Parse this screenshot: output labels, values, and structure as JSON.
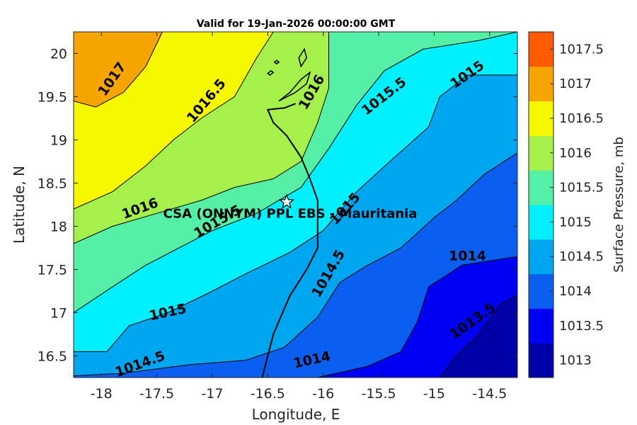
{
  "chart_data": {
    "type": "contour",
    "title": "Valid for 19-Jan-2026 00:00:00 GMT",
    "xlabel": "Longitude, E",
    "ylabel": "Latitude, N",
    "xlim": [
      -18.25,
      -14.25
    ],
    "ylim": [
      16.25,
      20.25
    ],
    "xticks": [
      -18,
      -17.5,
      -17,
      -16.5,
      -16,
      -15.5,
      -15,
      -14.5
    ],
    "xtick_labels": [
      "-18",
      "-17.5",
      "-17",
      "-16.5",
      "-16",
      "-15.5",
      "-15",
      "-14.5"
    ],
    "yticks": [
      16.5,
      17,
      17.5,
      18,
      18.5,
      19,
      19.5,
      20
    ],
    "ytick_labels": [
      "16.5",
      "17",
      "17.5",
      "18",
      "18.5",
      "19",
      "19.5",
      "20"
    ],
    "colorbar": {
      "label": "Surface Pressure, mb",
      "levels": [
        1013,
        1013.5,
        1014,
        1014.5,
        1015,
        1015.5,
        1016,
        1016.5,
        1017,
        1017.5
      ],
      "level_labels": [
        "1013",
        "1013.5",
        "1014",
        "1014.5",
        "1015",
        "1015.5",
        "1016",
        "1016.5",
        "1017",
        "1017.5"
      ],
      "colors": [
        "#0000a8",
        "#0000f5",
        "#0a5ff0",
        "#00a5f0",
        "#00f0ff",
        "#55f0a5",
        "#a5f04a",
        "#f7f700",
        "#f7a500",
        "#ff5a00"
      ]
    },
    "contours": [
      {
        "level": 1017,
        "label": "1017",
        "points": [
          [
            -18.25,
            19.45
          ],
          [
            -18.05,
            19.38
          ],
          [
            -17.8,
            19.55
          ],
          [
            -17.6,
            19.85
          ],
          [
            -17.45,
            20.25
          ]
        ]
      },
      {
        "level": 1016.5,
        "label": "1016.5",
        "points": [
          [
            -18.25,
            18.2
          ],
          [
            -17.9,
            18.4
          ],
          [
            -17.6,
            18.7
          ],
          [
            -17.35,
            19.0
          ],
          [
            -17.1,
            19.25
          ],
          [
            -16.8,
            19.5
          ],
          [
            -16.6,
            19.95
          ],
          [
            -16.45,
            20.25
          ]
        ]
      },
      {
        "level": 1016,
        "label": "1016",
        "points": [
          [
            -18.25,
            17.8
          ],
          [
            -17.9,
            18.0
          ],
          [
            -17.5,
            18.15
          ],
          [
            -17.1,
            18.3
          ],
          [
            -16.8,
            18.45
          ],
          [
            -16.45,
            18.55
          ],
          [
            -16.2,
            18.75
          ],
          [
            -16.05,
            19.2
          ],
          [
            -15.95,
            19.6
          ],
          [
            -15.95,
            20.25
          ]
        ]
      },
      {
        "level": 1015.5,
        "label": "1015.5",
        "points": [
          [
            -18.25,
            17.0
          ],
          [
            -17.9,
            17.3
          ],
          [
            -17.6,
            17.55
          ],
          [
            -17.3,
            17.75
          ],
          [
            -17.0,
            17.95
          ],
          [
            -16.6,
            18.15
          ],
          [
            -16.2,
            18.45
          ],
          [
            -15.95,
            18.9
          ],
          [
            -15.7,
            19.4
          ],
          [
            -15.45,
            19.8
          ],
          [
            -15.1,
            20.05
          ],
          [
            -14.6,
            20.15
          ],
          [
            -14.25,
            20.25
          ]
        ]
      },
      {
        "level": 1015,
        "label": "1015",
        "points": [
          [
            -18.25,
            16.55
          ],
          [
            -17.95,
            16.55
          ],
          [
            -17.75,
            16.85
          ],
          [
            -17.4,
            17.0
          ],
          [
            -17.0,
            17.25
          ],
          [
            -16.7,
            17.45
          ],
          [
            -16.3,
            17.7
          ],
          [
            -16.0,
            17.95
          ],
          [
            -15.7,
            18.4
          ],
          [
            -15.4,
            18.75
          ],
          [
            -15.05,
            19.15
          ],
          [
            -14.95,
            19.5
          ],
          [
            -14.7,
            19.75
          ],
          [
            -14.25,
            19.75
          ]
        ]
      },
      {
        "level": 1014.5,
        "label": "1014.5",
        "points": [
          [
            -18.25,
            16.27
          ],
          [
            -17.8,
            16.3
          ],
          [
            -17.2,
            16.4
          ],
          [
            -16.7,
            16.45
          ],
          [
            -16.35,
            16.6
          ],
          [
            -16.05,
            16.95
          ],
          [
            -15.85,
            17.35
          ],
          [
            -15.6,
            17.55
          ],
          [
            -15.3,
            17.75
          ],
          [
            -15.0,
            18.1
          ],
          [
            -14.8,
            18.3
          ],
          [
            -14.55,
            18.6
          ],
          [
            -14.25,
            18.85
          ]
        ]
      },
      {
        "level": 1014,
        "label": "1014",
        "points": [
          [
            -16.05,
            16.25
          ],
          [
            -15.6,
            16.38
          ],
          [
            -15.3,
            16.55
          ],
          [
            -15.15,
            16.9
          ],
          [
            -15.05,
            17.3
          ],
          [
            -14.75,
            17.55
          ],
          [
            -14.5,
            17.6
          ],
          [
            -14.25,
            17.65
          ]
        ]
      },
      {
        "level": 1013.5,
        "label": "1013.5",
        "points": [
          [
            -14.95,
            16.25
          ],
          [
            -14.8,
            16.5
          ],
          [
            -14.6,
            16.75
          ],
          [
            -14.4,
            17.1
          ],
          [
            -14.25,
            17.2
          ]
        ]
      }
    ],
    "contour_labels": [
      {
        "text": "1017",
        "lon": -17.9,
        "lat": 19.7,
        "angle": -55
      },
      {
        "text": "1016.5",
        "lon": -17.05,
        "lat": 19.45,
        "angle": -50
      },
      {
        "text": "1016",
        "lon": -16.1,
        "lat": 19.55,
        "angle": -60
      },
      {
        "text": "1015.5",
        "lon": -15.45,
        "lat": 19.5,
        "angle": -38
      },
      {
        "text": "1015",
        "lon": -14.7,
        "lat": 19.75,
        "angle": -35
      },
      {
        "text": "1016",
        "lon": -17.65,
        "lat": 18.2,
        "angle": -20
      },
      {
        "text": "1015.5",
        "lon": -16.95,
        "lat": 18.05,
        "angle": -30
      },
      {
        "text": "1015",
        "lon": -15.8,
        "lat": 18.2,
        "angle": -48
      },
      {
        "text": "1015",
        "lon": -17.4,
        "lat": 17.0,
        "angle": -12
      },
      {
        "text": "1014.5",
        "lon": -15.95,
        "lat": 17.45,
        "angle": -60
      },
      {
        "text": "1014.5",
        "lon": -17.65,
        "lat": 16.4,
        "angle": -20
      },
      {
        "text": "1014",
        "lon": -16.1,
        "lat": 16.45,
        "angle": -12
      },
      {
        "text": "1014",
        "lon": -14.7,
        "lat": 17.65,
        "angle": 0
      },
      {
        "text": "1013.5",
        "lon": -14.65,
        "lat": 16.9,
        "angle": -35
      }
    ],
    "coastline": [
      [
        -16.55,
        16.25
      ],
      [
        -16.5,
        16.5
      ],
      [
        -16.45,
        16.75
      ],
      [
        -16.4,
        16.9
      ],
      [
        -16.3,
        17.2
      ],
      [
        -16.15,
        17.5
      ],
      [
        -16.05,
        17.75
      ],
      [
        -16.05,
        18.1
      ],
      [
        -16.05,
        18.3
      ],
      [
        -16.12,
        18.55
      ],
      [
        -16.2,
        18.8
      ],
      [
        -16.33,
        19.05
      ],
      [
        -16.45,
        19.2
      ],
      [
        -16.5,
        19.35
      ],
      [
        -16.35,
        19.37
      ],
      [
        -16.25,
        19.42
      ]
    ],
    "islands": [
      [
        [
          -16.4,
          19.45
        ],
        [
          -16.25,
          19.55
        ],
        [
          -16.15,
          19.65
        ],
        [
          -16.12,
          19.78
        ],
        [
          -16.2,
          19.7
        ],
        [
          -16.3,
          19.55
        ],
        [
          -16.4,
          19.45
        ]
      ],
      [
        [
          -16.2,
          19.85
        ],
        [
          -16.15,
          19.95
        ],
        [
          -16.17,
          20.05
        ],
        [
          -16.22,
          19.95
        ],
        [
          -16.2,
          19.85
        ]
      ],
      [
        [
          -16.42,
          19.88
        ],
        [
          -16.4,
          19.9
        ],
        [
          -16.42,
          19.92
        ],
        [
          -16.44,
          19.9
        ],
        [
          -16.42,
          19.88
        ]
      ],
      [
        [
          -16.48,
          19.75
        ],
        [
          -16.45,
          19.78
        ],
        [
          -16.47,
          19.8
        ],
        [
          -16.5,
          19.77
        ],
        [
          -16.48,
          19.75
        ]
      ]
    ],
    "site": {
      "name": "CSA (ONNYM) PPL EBS - Mauritania",
      "lon": -16.33,
      "lat": 18.28
    }
  }
}
